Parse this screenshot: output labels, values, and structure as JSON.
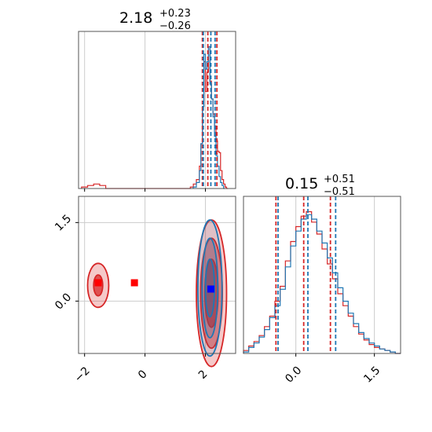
{
  "chart_data": {
    "type": "corner",
    "colors": {
      "blue": "#1f77b4",
      "red": "#d62728",
      "grid": "#cccccc",
      "marker_blue": "#0000ff",
      "marker_red": "#ff0000"
    },
    "panels": [
      {
        "id": "hist_x",
        "type": "histogram",
        "title": {
          "value": "2.18",
          "upper": "+0.23",
          "lower": "−0.26"
        },
        "xlim": [
          -2.2,
          3.0
        ],
        "grid_x": [
          -2,
          0,
          2
        ],
        "series": [
          {
            "name": "",
            "color": "#d62728",
            "x": [
              -2.1,
              -1.9,
              -1.7,
              -1.5,
              -1.3,
              1.5,
              1.6,
              1.7,
              1.8,
              1.85,
              1.9,
              1.95,
              2.0,
              2.05,
              2.1,
              2.15,
              2.2,
              2.25,
              2.3,
              2.35,
              2.4,
              2.45,
              2.5,
              2.55,
              2.6,
              2.65,
              2.7
            ],
            "density": [
              0.01,
              0.02,
              0.03,
              0.02,
              0.0,
              0.01,
              0.03,
              0.06,
              0.15,
              0.3,
              0.55,
              0.85,
              0.65,
              0.78,
              0.95,
              0.72,
              0.6,
              0.5,
              0.42,
              0.32,
              0.25,
              0.24,
              0.12,
              0.06,
              0.03,
              0.01,
              0.0
            ]
          },
          {
            "name": "",
            "color": "#1f77b4",
            "x": [
              1.6,
              1.7,
              1.8,
              1.85,
              1.9,
              1.95,
              2.0,
              2.05,
              2.1,
              2.15,
              2.2,
              2.25,
              2.3,
              2.35,
              2.4,
              2.45,
              2.5,
              2.55,
              2.6
            ],
            "density": [
              0.01,
              0.04,
              0.12,
              0.3,
              0.55,
              0.9,
              0.8,
              0.85,
              0.95,
              0.7,
              0.6,
              0.48,
              0.35,
              0.22,
              0.15,
              0.08,
              0.04,
              0.02,
              0.0
            ]
          }
        ],
        "quantile_lines": [
          {
            "color": "#d62728",
            "x": [
              1.9,
              2.08,
              2.38
            ]
          },
          {
            "color": "#1f77b4",
            "x": [
              1.93,
              2.18,
              2.32
            ]
          }
        ]
      },
      {
        "id": "hist_y",
        "type": "histogram",
        "title": {
          "value": "0.15",
          "upper": "+0.51",
          "lower": "−0.51"
        },
        "xlim": [
          -1.0,
          2.0
        ],
        "ticks": [
          0.0,
          1.5
        ],
        "tick_labels": [
          "0.0",
          "1.5"
        ],
        "grid_x": [
          0.0,
          1.5
        ],
        "series": [
          {
            "name": "",
            "color": "#d62728",
            "x": [
              -1.0,
              -0.9,
              -0.8,
              -0.7,
              -0.6,
              -0.5,
              -0.4,
              -0.3,
              -0.2,
              -0.1,
              0.0,
              0.1,
              0.2,
              0.3,
              0.4,
              0.5,
              0.6,
              0.7,
              0.8,
              0.9,
              1.0,
              1.1,
              1.2,
              1.3,
              1.4,
              1.5,
              1.6,
              1.7,
              1.8,
              1.9
            ],
            "density": [
              0.02,
              0.05,
              0.08,
              0.12,
              0.18,
              0.25,
              0.35,
              0.45,
              0.62,
              0.75,
              0.85,
              0.92,
              0.95,
              0.88,
              0.8,
              0.7,
              0.6,
              0.5,
              0.4,
              0.32,
              0.25,
              0.18,
              0.13,
              0.09,
              0.06,
              0.04,
              0.03,
              0.02,
              0.01,
              0.0
            ]
          },
          {
            "name": "",
            "color": "#1f77b4",
            "x": [
              -1.0,
              -0.9,
              -0.8,
              -0.7,
              -0.6,
              -0.5,
              -0.4,
              -0.3,
              -0.2,
              -0.1,
              0.0,
              0.1,
              0.2,
              0.3,
              0.4,
              0.5,
              0.6,
              0.7,
              0.8,
              0.9,
              1.0,
              1.1,
              1.2,
              1.3,
              1.4,
              1.5,
              1.6,
              1.7,
              1.8,
              1.9
            ],
            "density": [
              0.01,
              0.04,
              0.07,
              0.11,
              0.16,
              0.24,
              0.32,
              0.43,
              0.58,
              0.72,
              0.82,
              0.9,
              0.93,
              0.9,
              0.82,
              0.74,
              0.64,
              0.54,
              0.44,
              0.35,
              0.27,
              0.2,
              0.14,
              0.1,
              0.07,
              0.05,
              0.03,
              0.02,
              0.01,
              0.0
            ]
          }
        ],
        "quantile_lines": [
          {
            "color": "#d62728",
            "x": [
              -0.38,
              0.15,
              0.66
            ]
          },
          {
            "color": "#1f77b4",
            "x": [
              -0.34,
              0.23,
              0.76
            ]
          }
        ]
      },
      {
        "id": "joint",
        "type": "contour",
        "xlim": [
          -2.2,
          3.0
        ],
        "ylim": [
          -1.0,
          2.0
        ],
        "xticks": [
          -2,
          0,
          2
        ],
        "xtick_labels": [
          "−2",
          "0",
          "2"
        ],
        "yticks": [
          0.0,
          1.5
        ],
        "ytick_labels": [
          "0.0",
          "1.5"
        ],
        "grid_x": [
          -2,
          0,
          2
        ],
        "grid_y": [
          0.0,
          1.5
        ],
        "red_contours": [
          {
            "cx": 2.2,
            "cy": 0.15,
            "rx": 0.5,
            "ry": 1.4,
            "level": "outer"
          },
          {
            "cx": 2.2,
            "cy": 0.15,
            "rx": 0.36,
            "ry": 1.05,
            "level": "middle"
          },
          {
            "cx": 2.2,
            "cy": 0.15,
            "rx": 0.22,
            "ry": 0.65,
            "level": "inner"
          },
          {
            "cx": -1.55,
            "cy": 0.3,
            "rx": 0.35,
            "ry": 0.42,
            "level": "outer"
          },
          {
            "cx": -1.55,
            "cy": 0.3,
            "rx": 0.15,
            "ry": 0.2,
            "level": "inner"
          }
        ],
        "blue_contours": [
          {
            "cx": 2.15,
            "cy": 0.25,
            "rx": 0.4,
            "ry": 1.3,
            "level": "outer"
          },
          {
            "cx": 2.15,
            "cy": 0.25,
            "rx": 0.26,
            "ry": 0.95,
            "level": "middle"
          },
          {
            "cx": 2.15,
            "cy": 0.25,
            "rx": 0.15,
            "ry": 0.55,
            "level": "inner"
          }
        ],
        "markers": [
          {
            "color": "#0000ff",
            "x": 2.18,
            "y": 0.23
          },
          {
            "color": "#ff0000",
            "x": -0.35,
            "y": 0.35
          },
          {
            "color": "#ff0000",
            "x": -1.55,
            "y": 0.35
          }
        ]
      }
    ]
  }
}
